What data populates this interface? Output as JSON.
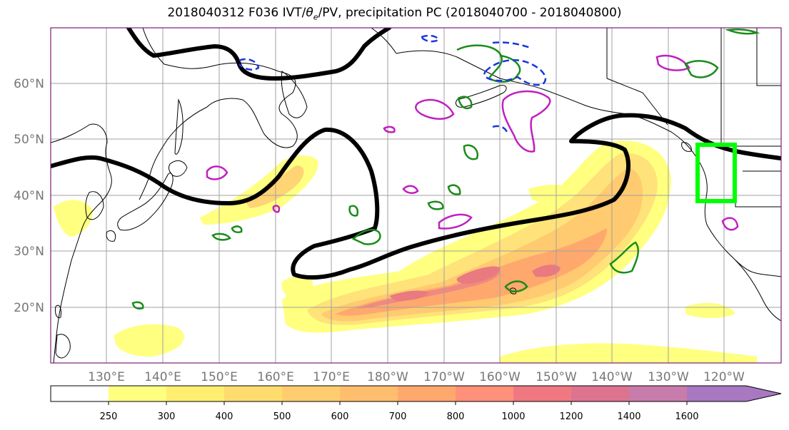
{
  "title": {
    "prefix": "2018040312 F036 IVT/",
    "theta": "θ",
    "theta_sub": "e",
    "suffix": "/PV, precipitation PC (2018040700 - 2018040800)"
  },
  "map": {
    "lat_labels": [
      "60°N",
      "50°N",
      "40°N",
      "30°N",
      "20°N"
    ],
    "lon_labels": [
      "130°E",
      "140°E",
      "150°E",
      "160°E",
      "170°E",
      "180°W",
      "170°W",
      "160°W",
      "150°W",
      "140°W",
      "130°W",
      "120°W"
    ],
    "colors": {
      "theta_e_contour": "#000000",
      "pv_contour": "#c020c0",
      "precip_pc_positive": "#1a8c1a",
      "precip_pc_negative": "#1a35e0",
      "box": "#00ff00",
      "coastline": "#000000",
      "grid": "#a0a0a0"
    }
  },
  "colorbar": {
    "levels": [
      "250",
      "300",
      "400",
      "500",
      "600",
      "700",
      "800",
      "1000",
      "1200",
      "1400",
      "1600"
    ],
    "colors": [
      "#ffff80",
      "#ffef70",
      "#ffdc6e",
      "#ffcd6e",
      "#ffbe6e",
      "#ffa86e",
      "#ff907a",
      "#f07880",
      "#dc7490",
      "#c87cac",
      "#a878c0"
    ],
    "extend": "max"
  }
}
